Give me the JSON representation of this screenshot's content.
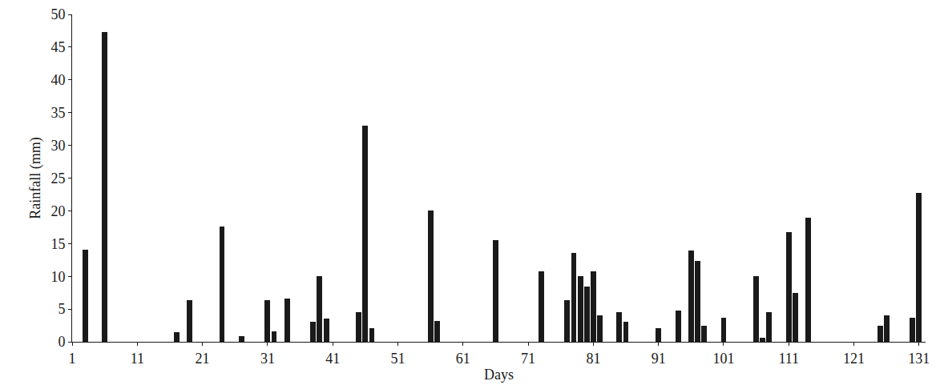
{
  "chart_data": {
    "type": "bar",
    "x_label": "Days",
    "y_label": "Rainfall (mm)",
    "x": [
      3,
      6,
      17,
      19,
      24,
      27,
      31,
      32,
      34,
      38,
      39,
      40,
      45,
      46,
      47,
      56,
      57,
      66,
      73,
      77,
      78,
      79,
      80,
      81,
      82,
      85,
      86,
      91,
      94,
      96,
      97,
      98,
      101,
      106,
      107,
      108,
      111,
      112,
      114,
      125,
      126,
      130,
      131
    ],
    "values": [
      14,
      47.3,
      1.5,
      6.3,
      17.6,
      0.8,
      6.3,
      1.6,
      6.6,
      3,
      10,
      3.5,
      4.5,
      33,
      2.1,
      20,
      3.2,
      15.5,
      10.8,
      6.3,
      13.6,
      10,
      8.4,
      10.8,
      4,
      4.5,
      3,
      2.1,
      4.8,
      13.9,
      12.3,
      2.4,
      3.7,
      10,
      0.6,
      4.5,
      16.8,
      7.4,
      18.9,
      2.4,
      4,
      3.7,
      22.8
    ],
    "color": "#1a1a1a",
    "xlim": [
      1,
      132
    ],
    "xticks": [
      1,
      11,
      21,
      31,
      41,
      51,
      61,
      71,
      81,
      91,
      101,
      111,
      121,
      131
    ],
    "ylim": [
      0,
      50
    ],
    "yticks": [
      0,
      5,
      10,
      15,
      20,
      25,
      30,
      35,
      40,
      45,
      50
    ],
    "grid": false
  }
}
